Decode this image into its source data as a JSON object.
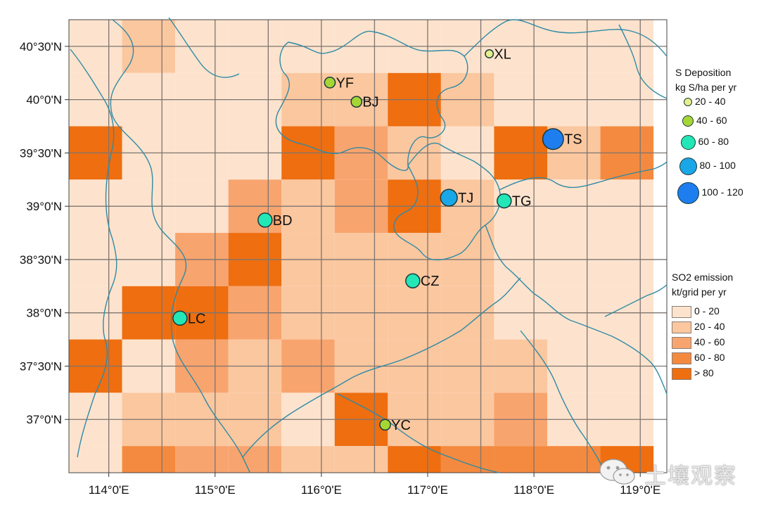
{
  "map": {
    "lon_ticks": [
      "114°0'E",
      "115°0'E",
      "116°0'E",
      "117°0'E",
      "118°0'E",
      "119°0'E"
    ],
    "lat_ticks": [
      "40°30'N",
      "40°0'N",
      "39°30'N",
      "39°0'N",
      "38°30'N",
      "38°0'N",
      "37°30'N",
      "37°0'N"
    ],
    "extent": {
      "lon_min": 113.625,
      "lon_max": 119.25,
      "lat_min": 36.5,
      "lat_max": 40.75
    },
    "grid_resolution_deg": 0.5,
    "emission_grid": [
      [
        0,
        1,
        0,
        0,
        0,
        0,
        0,
        0,
        0,
        0,
        0
      ],
      [
        0,
        0,
        0,
        0,
        1,
        1,
        4,
        1,
        0,
        0,
        0
      ],
      [
        4,
        0,
        0,
        0,
        4,
        2,
        1,
        0,
        4,
        1,
        3
      ],
      [
        0,
        0,
        0,
        2,
        1,
        2,
        4,
        1,
        0,
        0,
        0
      ],
      [
        0,
        0,
        2,
        4,
        1,
        1,
        1,
        1,
        0,
        0,
        0
      ],
      [
        0,
        4,
        4,
        2,
        1,
        1,
        1,
        1,
        0,
        0,
        0
      ],
      [
        4,
        0,
        2,
        1,
        2,
        1,
        1,
        1,
        1,
        0,
        0
      ],
      [
        0,
        1,
        1,
        1,
        0,
        4,
        1,
        1,
        2,
        0,
        0
      ],
      [
        0,
        3,
        2,
        2,
        1,
        1,
        4,
        3,
        3,
        3,
        4
      ]
    ],
    "emission_colors": [
      "#fde3cd",
      "#fbc79f",
      "#f8a46e",
      "#f48a3f",
      "#ee6e10"
    ],
    "grid_line_color": "#7d7570",
    "water_color": "#2f8aa6",
    "sites": [
      {
        "name": "XL",
        "lon": 117.58,
        "lat": 40.43,
        "class": 0
      },
      {
        "name": "YF",
        "lon": 116.08,
        "lat": 40.16,
        "class": 1
      },
      {
        "name": "BJ",
        "lon": 116.33,
        "lat": 39.98,
        "class": 1
      },
      {
        "name": "TS",
        "lon": 118.18,
        "lat": 39.63,
        "class": 4
      },
      {
        "name": "TJ",
        "lon": 117.2,
        "lat": 39.08,
        "class": 3
      },
      {
        "name": "TG",
        "lon": 117.72,
        "lat": 39.05,
        "class": 2
      },
      {
        "name": "BD",
        "lon": 115.47,
        "lat": 38.87,
        "class": 2
      },
      {
        "name": "CZ",
        "lon": 116.86,
        "lat": 38.3,
        "class": 2
      },
      {
        "name": "LC",
        "lon": 114.67,
        "lat": 37.95,
        "class": 2
      },
      {
        "name": "YC",
        "lon": 116.6,
        "lat": 36.95,
        "class": 1
      }
    ]
  },
  "legend_deposition": {
    "title_line1": "S Deposition",
    "title_line2": "kg S/ha per yr",
    "classes": [
      {
        "label": "20 - 40",
        "color": "#e6f08a",
        "size": 12
      },
      {
        "label": "40 - 60",
        "color": "#a6d635",
        "size": 16
      },
      {
        "label": "60 - 80",
        "color": "#23e7b6",
        "size": 21
      },
      {
        "label": "80 - 100",
        "color": "#1aa7e8",
        "size": 25
      },
      {
        "label": "100 - 120",
        "color": "#1e7ef0",
        "size": 31
      }
    ]
  },
  "legend_emission": {
    "title_line1": "SO2 emission",
    "title_line2": "kt/grid per yr",
    "classes": [
      {
        "label": "0 - 20",
        "color": "#fde3cd"
      },
      {
        "label": "20 - 40",
        "color": "#fbc79f"
      },
      {
        "label": "40 - 60",
        "color": "#f8a46e"
      },
      {
        "label": "60 - 80",
        "color": "#f48a3f"
      },
      {
        "label": "> 80",
        "color": "#ee6e10"
      }
    ]
  },
  "watermark": {
    "text": "土壤观察",
    "icon": "wechat-icon"
  }
}
